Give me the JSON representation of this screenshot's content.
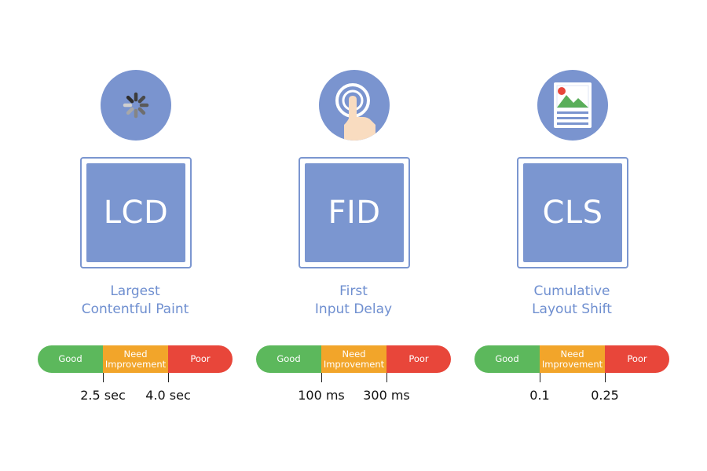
{
  "metrics": [
    {
      "abbr": "LCD",
      "name_line1": "Largest",
      "name_line2": "Contentful Paint",
      "icon": "loading-spinner-icon",
      "scale": {
        "good": "Good",
        "need_line1": "Need",
        "need_line2": "Improvement",
        "poor": "Poor"
      },
      "thresholds": [
        "2.5 sec",
        "4.0 sec"
      ]
    },
    {
      "abbr": "FID",
      "name_line1": "First",
      "name_line2": "Input Delay",
      "icon": "finger-tap-icon",
      "scale": {
        "good": "Good",
        "need_line1": "Need",
        "need_line2": "Improvement",
        "poor": "Poor"
      },
      "thresholds": [
        "100 ms",
        "300 ms"
      ]
    },
    {
      "abbr": "CLS",
      "name_line1": "Cumulative",
      "name_line2": "Layout Shift",
      "icon": "image-document-icon",
      "scale": {
        "good": "Good",
        "need_line1": "Need",
        "need_line2": "Improvement",
        "poor": "Poor"
      },
      "thresholds": [
        "0.1",
        "0.25"
      ]
    }
  ],
  "colors": {
    "accent": "#7b96d0",
    "caption": "#6f8fd0",
    "good": "#5cb85c",
    "need_improvement": "#f2a52a",
    "poor": "#e8463a"
  }
}
